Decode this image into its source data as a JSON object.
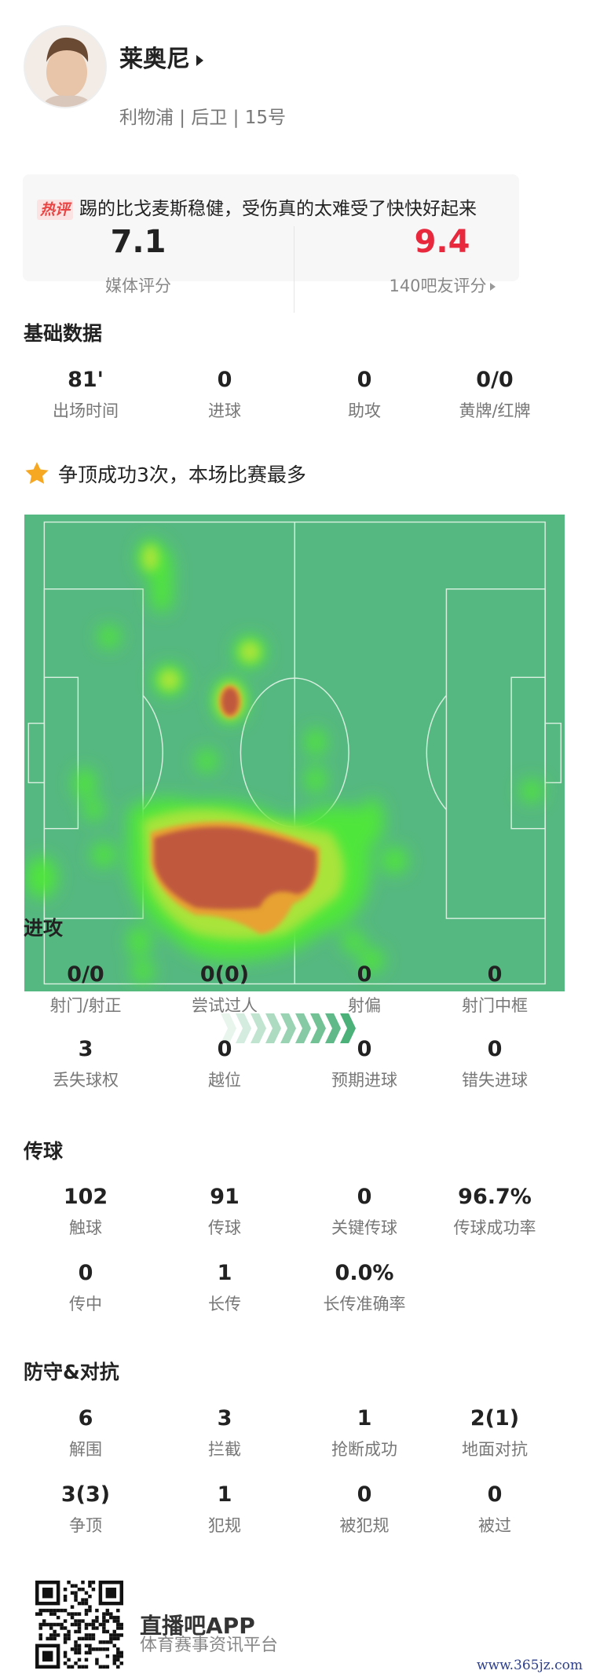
{
  "player": {
    "name": "莱奥尼",
    "team": "利物浦",
    "position": "后卫",
    "number": "15号",
    "subtitle": "利物浦 | 后卫 | 15号"
  },
  "comment": {
    "badge": "热评",
    "text": "踢的比戈麦斯稳健，受伤真的太难受了快快好起来"
  },
  "ratings": {
    "media": {
      "value": "7.1",
      "label": "媒体评分"
    },
    "fans": {
      "value": "9.4",
      "label": "140吧友评分",
      "color": "#e8283c"
    }
  },
  "basic": {
    "title": "基础数据",
    "items": [
      {
        "value": "81'",
        "label": "出场时间"
      },
      {
        "value": "0",
        "label": "进球"
      },
      {
        "value": "0",
        "label": "助攻"
      },
      {
        "value": "0/0",
        "label": "黄牌/红牌"
      }
    ]
  },
  "highlight": {
    "icon": "star-icon",
    "text": "争顶成功3次，本场比赛最多"
  },
  "attack": {
    "title": "进攻",
    "items": [
      {
        "value": "0/0",
        "label": "射门/射正"
      },
      {
        "value": "0(0)",
        "label": "尝试过人"
      },
      {
        "value": "0",
        "label": "射偏"
      },
      {
        "value": "0",
        "label": "射门中框"
      },
      {
        "value": "3",
        "label": "丢失球权"
      },
      {
        "value": "0",
        "label": "越位"
      },
      {
        "value": "0",
        "label": "预期进球"
      },
      {
        "value": "0",
        "label": "错失进球"
      }
    ]
  },
  "passing": {
    "title": "传球",
    "items": [
      {
        "value": "102",
        "label": "触球"
      },
      {
        "value": "91",
        "label": "传球"
      },
      {
        "value": "0",
        "label": "关键传球"
      },
      {
        "value": "96.7%",
        "label": "传球成功率"
      },
      {
        "value": "0",
        "label": "传中"
      },
      {
        "value": "1",
        "label": "长传"
      },
      {
        "value": "0.0%",
        "label": "长传准确率"
      }
    ]
  },
  "defense": {
    "title": "防守&对抗",
    "items": [
      {
        "value": "6",
        "label": "解围"
      },
      {
        "value": "3",
        "label": "拦截"
      },
      {
        "value": "1",
        "label": "抢断成功"
      },
      {
        "value": "2(1)",
        "label": "地面对抗"
      },
      {
        "value": "3(3)",
        "label": "争顶"
      },
      {
        "value": "1",
        "label": "犯规"
      },
      {
        "value": "0",
        "label": "被犯规"
      },
      {
        "value": "0",
        "label": "被过"
      }
    ]
  },
  "footer": {
    "app": "直播吧APP",
    "slogan": "体育赛事资讯平台",
    "watermark": "www.365jz.com"
  },
  "colors": {
    "pitch": "#55b880",
    "accent_red": "#e8283c"
  }
}
